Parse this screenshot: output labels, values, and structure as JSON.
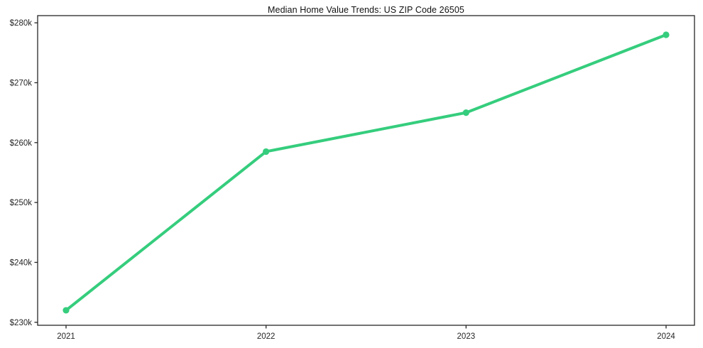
{
  "chart_data": {
    "type": "line",
    "title": "Median Home Value Trends: US ZIP Code 26505",
    "categories": [
      "2021",
      "2022",
      "2023",
      "2024"
    ],
    "series": [
      {
        "name": "Median Home Value",
        "values": [
          232000,
          258500,
          265000,
          278000
        ]
      }
    ],
    "xlabel": "",
    "ylabel": "",
    "ylim": [
      229500,
      281200
    ],
    "ytick_values": [
      230000,
      240000,
      250000,
      260000,
      270000,
      280000
    ],
    "ytick_labels": [
      "$230k",
      "$240k",
      "$250k",
      "$260k",
      "$270k",
      "$280k"
    ],
    "grid": false,
    "legend_position": "none",
    "line_color": "#35cd7d",
    "marker": "circle",
    "spine_color": "#262626"
  }
}
